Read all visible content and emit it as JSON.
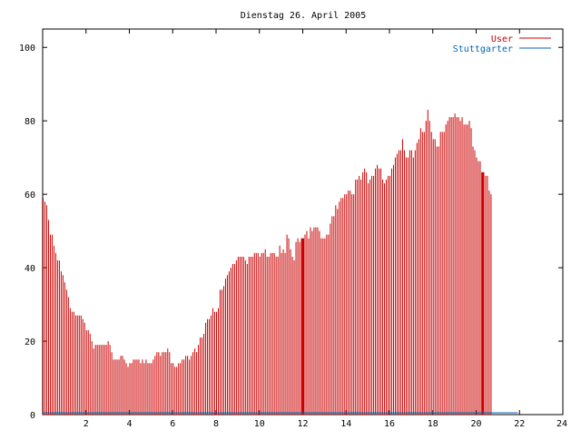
{
  "chart_data": {
    "type": "bar",
    "title": "Dienstag 26. April 2005",
    "xlabel": "",
    "ylabel": "",
    "xlim": [
      0,
      24
    ],
    "ylim": [
      0,
      105
    ],
    "x_ticks": [
      "2",
      "4",
      "6",
      "8",
      "10",
      "12",
      "14",
      "16",
      "18",
      "20",
      "22",
      "24"
    ],
    "y_ticks": [
      "0",
      "20",
      "40",
      "60",
      "80",
      "100"
    ],
    "grid": false,
    "legend_position": "top-right",
    "interval_hours": 0.083333,
    "series": [
      {
        "name": "User",
        "color": "#cc0000",
        "values": [
          59,
          58,
          57,
          53,
          49,
          49,
          46,
          44,
          42,
          42,
          39,
          38,
          36,
          34,
          32,
          29,
          28,
          28,
          27,
          27,
          27,
          27,
          26,
          25,
          23,
          23,
          22,
          20,
          18,
          19,
          19,
          19,
          19,
          19,
          19,
          19,
          20,
          19,
          17,
          15,
          15,
          15,
          15,
          16,
          16,
          15,
          14,
          13,
          14,
          14,
          15,
          15,
          15,
          15,
          14,
          15,
          14,
          15,
          14,
          14,
          14,
          15,
          16,
          17,
          17,
          16,
          17,
          17,
          17,
          18,
          17,
          14,
          14,
          13,
          13,
          14,
          14,
          15,
          15,
          16,
          16,
          15,
          16,
          17,
          18,
          17,
          19,
          21,
          21,
          22,
          25,
          26,
          26,
          27,
          29,
          28,
          28,
          29,
          34,
          34,
          35,
          37,
          38,
          39,
          40,
          41,
          41,
          42,
          43,
          43,
          43,
          43,
          42,
          41,
          43,
          43,
          43,
          44,
          44,
          44,
          43,
          44,
          44,
          45,
          43,
          43,
          44,
          44,
          44,
          43,
          43,
          46,
          44,
          45,
          44,
          49,
          48,
          45,
          43,
          42,
          47,
          48,
          47,
          48,
          48,
          49,
          50,
          48,
          51,
          50,
          51,
          51,
          51,
          50,
          48,
          48,
          48,
          49,
          49,
          52,
          54,
          54,
          57,
          56,
          58,
          59,
          59,
          60,
          60,
          61,
          61,
          60,
          60,
          64,
          64,
          65,
          64,
          66,
          67,
          66,
          63,
          64,
          65,
          65,
          67,
          68,
          67,
          67,
          64,
          63,
          64,
          65,
          65,
          67,
          68,
          70,
          71,
          72,
          72,
          75,
          72,
          70,
          70,
          72,
          72,
          70,
          72,
          74,
          75,
          78,
          77,
          77,
          80,
          83,
          80,
          77,
          75,
          75,
          73,
          73,
          77,
          77,
          77,
          79,
          80,
          81,
          81,
          81,
          82,
          81,
          81,
          80,
          81,
          79,
          79,
          79,
          80,
          78,
          73,
          72,
          70,
          69,
          69,
          66,
          66,
          65,
          65,
          61,
          60
        ],
        "highlight_x": [
          12.0,
          20.3
        ]
      },
      {
        "name": "Stuttgarter",
        "color": "#0066bb",
        "values": [
          1,
          1,
          1,
          1,
          1,
          1,
          1,
          1,
          1,
          1,
          1,
          1,
          1,
          1,
          1,
          1,
          1,
          1,
          1,
          1,
          1,
          1,
          1,
          1,
          1,
          1,
          1,
          1,
          1,
          1,
          1,
          1,
          1,
          1,
          1,
          1,
          1,
          1,
          1,
          1,
          1,
          1,
          1,
          1,
          1,
          1,
          1,
          1,
          1,
          1,
          1,
          1,
          1,
          1,
          1,
          1,
          1,
          1,
          1,
          1,
          1,
          1,
          1,
          1,
          1,
          1,
          1,
          1,
          1,
          1,
          1,
          1,
          1,
          1,
          1,
          1,
          1,
          1,
          1,
          1,
          1,
          1,
          1,
          1,
          1,
          1,
          1,
          1,
          1,
          1,
          1,
          1,
          1,
          1,
          1,
          1,
          1,
          1,
          1,
          1,
          1,
          1,
          1,
          1,
          1,
          1,
          1,
          1,
          1,
          1,
          1,
          1,
          1,
          1,
          1,
          1,
          1,
          1,
          1,
          1,
          1,
          1,
          1,
          1,
          1,
          1,
          1,
          1,
          1,
          1,
          1,
          1,
          1,
          1,
          1,
          1,
          1,
          1,
          1,
          1,
          1,
          1,
          1,
          1,
          1,
          1,
          1,
          1,
          1,
          1,
          1,
          1,
          1,
          1,
          1,
          1,
          1,
          1,
          1,
          1,
          1,
          1,
          1,
          1,
          1,
          1,
          1,
          1,
          1,
          1,
          1,
          1,
          1,
          1,
          1,
          1,
          1,
          1,
          1,
          1,
          1,
          1,
          1,
          1,
          1,
          1,
          1,
          1,
          1,
          1,
          1,
          1,
          1,
          1,
          1,
          1,
          1,
          1,
          1,
          1,
          1,
          1,
          1,
          1,
          1,
          1,
          1,
          1,
          1,
          1,
          1,
          1,
          1,
          1,
          1,
          1,
          1,
          1,
          1,
          1,
          1,
          1,
          1,
          1,
          1,
          1,
          1,
          1,
          1,
          1,
          1,
          1,
          1,
          1,
          1,
          1,
          1,
          1,
          1,
          1,
          1,
          1,
          1,
          1,
          1,
          1,
          1,
          1,
          1,
          1,
          1,
          1,
          1,
          1,
          1,
          1,
          1,
          1,
          1,
          1,
          1,
          1,
          1,
          1
        ]
      }
    ]
  }
}
